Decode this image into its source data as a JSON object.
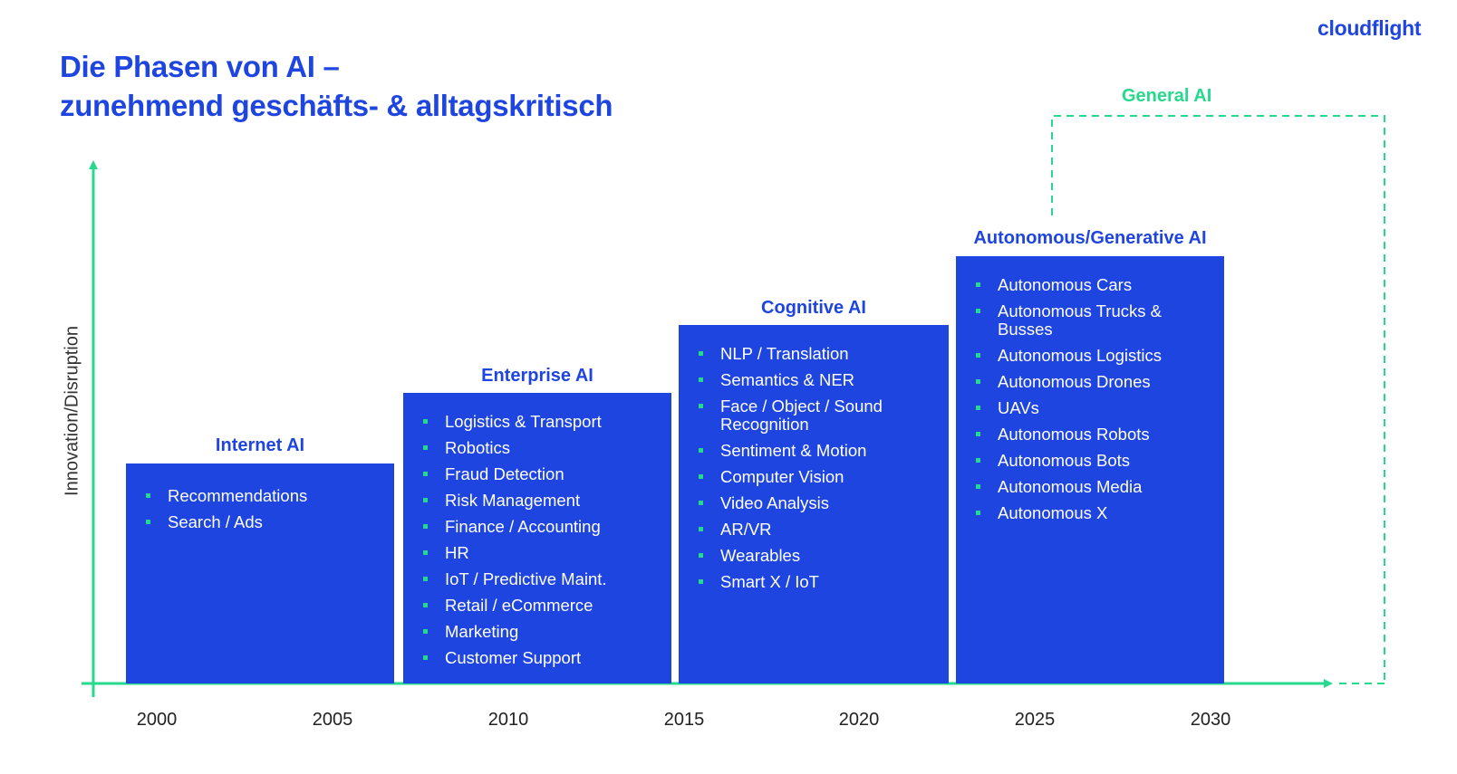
{
  "title": {
    "line1": "Die Phasen von AI –",
    "line2": "zunehmend geschäfts- & alltagskritisch"
  },
  "logo": "cloudflight",
  "axis": {
    "ylabel": "Innovation/Disruption",
    "years": [
      "2000",
      "2005",
      "2010",
      "2015",
      "2020",
      "2025",
      "2030"
    ]
  },
  "general_ai": "General AI",
  "phases": [
    {
      "title": "Internet AI",
      "items": [
        "Recommendations",
        "Search / Ads"
      ]
    },
    {
      "title": "Enterprise AI",
      "items": [
        "Logistics & Transport",
        "Robotics",
        "Fraud Detection",
        "Risk Management",
        "Finance / Accounting",
        "HR",
        "IoT / Predictive Maint.",
        "Retail / eCommerce",
        "Marketing",
        "Customer Support"
      ]
    },
    {
      "title": "Cognitive AI",
      "items": [
        "NLP / Translation",
        "Semantics & NER",
        "Face / Object / Sound Recognition",
        "Sentiment & Motion",
        "Computer Vision",
        "Video Analysis",
        "AR/VR",
        "Wearables",
        "Smart X / IoT"
      ]
    },
    {
      "title": "Autonomous/Generative AI",
      "items": [
        "Autonomous Cars",
        "Autonomous Trucks & Busses",
        "Autonomous Logistics",
        "Autonomous Drones",
        "UAVs",
        "Autonomous Robots",
        "Autonomous Bots",
        "Autonomous Media",
        "Autonomous X"
      ]
    }
  ],
  "colors": {
    "primary": "#1f45e0",
    "accent": "#27d98c"
  }
}
